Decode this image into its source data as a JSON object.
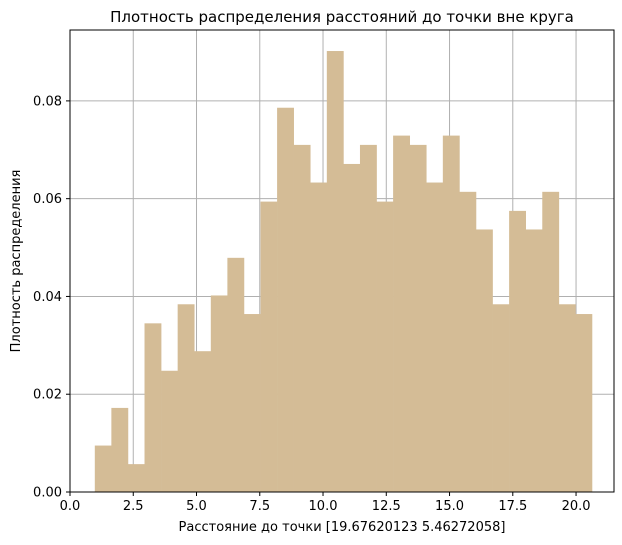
{
  "chart_data": {
    "type": "bar",
    "title": "Плотность распределения расстояний до точки вне круга",
    "xlabel": "Расстояние до точки [19.67620123  5.46272058]",
    "ylabel": "Плотность распределения",
    "xlim": [
      0.0,
      21.5
    ],
    "ylim": [
      0.0,
      0.0945
    ],
    "x_ticks": [
      0.0,
      2.5,
      5.0,
      7.5,
      10.0,
      12.5,
      15.0,
      17.5,
      20.0
    ],
    "x_tick_labels": [
      "0.0",
      "2.5",
      "5.0",
      "7.5",
      "10.0",
      "12.5",
      "15.0",
      "17.5",
      "20.0"
    ],
    "y_ticks": [
      0.0,
      0.02,
      0.04,
      0.06,
      0.08
    ],
    "y_tick_labels": [
      "0.00",
      "0.02",
      "0.04",
      "0.06",
      "0.08"
    ],
    "grid": true,
    "bar_color": "#d4bc96",
    "bin_edges": [
      0.98,
      1.635,
      2.29,
      2.945,
      3.6,
      4.255,
      4.91,
      5.565,
      6.22,
      6.875,
      7.53,
      8.185,
      8.84,
      9.495,
      10.15,
      10.805,
      11.46,
      12.115,
      12.77,
      13.425,
      14.08,
      14.735,
      15.39,
      16.045,
      16.7,
      17.355,
      18.01,
      18.665,
      19.32,
      19.975,
      20.63
    ],
    "values": [
      0.0095,
      0.0172,
      0.0057,
      0.0345,
      0.0248,
      0.0384,
      0.0288,
      0.0402,
      0.0479,
      0.0364,
      0.0594,
      0.0786,
      0.071,
      0.0633,
      0.0902,
      0.0671,
      0.071,
      0.0594,
      0.0729,
      0.071,
      0.0633,
      0.0729,
      0.0614,
      0.0537,
      0.0384,
      0.0575,
      0.0537,
      0.0614,
      0.0384,
      0.0364
    ]
  }
}
